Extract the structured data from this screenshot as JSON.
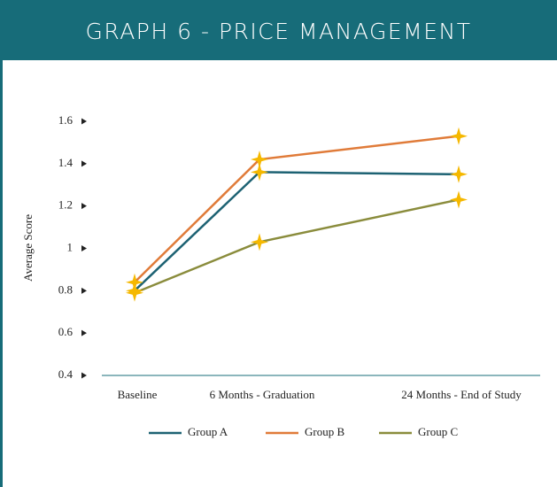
{
  "chart_data": {
    "type": "line",
    "title": "GRAPH 6 - PRICE MANAGEMENT",
    "y_label": "Average Score",
    "categories": [
      "Baseline",
      "6 Months - Graduation",
      "24 Months - End of Study"
    ],
    "series": [
      {
        "name": "Group A",
        "color": "#1d6273",
        "values": [
          0.8,
          1.36,
          1.35
        ]
      },
      {
        "name": "Group B",
        "color": "#e07b39",
        "values": [
          0.84,
          1.42,
          1.53
        ]
      },
      {
        "name": "Group C",
        "color": "#8a8c3c",
        "values": [
          0.79,
          1.03,
          1.23
        ]
      }
    ],
    "marker_color": "#f5b800",
    "ylim": [
      0.4,
      1.6
    ],
    "yticks": [
      0.4,
      0.6,
      0.8,
      1,
      1.2,
      1.4,
      1.6
    ]
  }
}
